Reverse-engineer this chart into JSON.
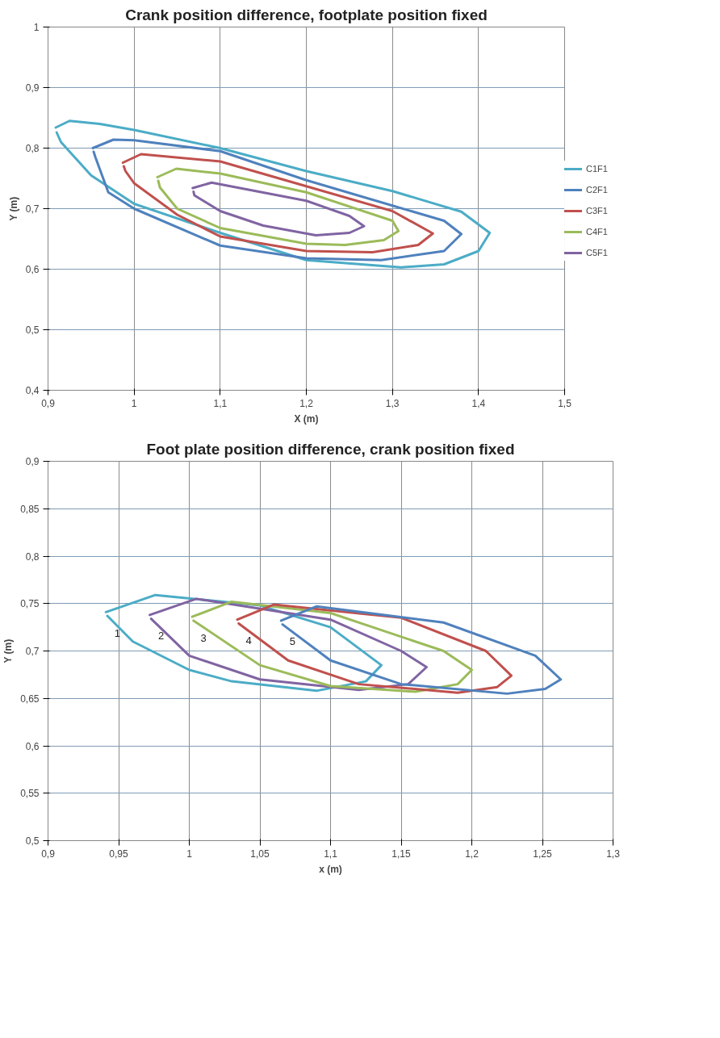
{
  "chart_data": [
    {
      "type": "line",
      "title": "Crank position difference, footplate position fixed",
      "xlabel": "X (m)",
      "ylabel": "Y (m)",
      "xlim": [
        0.9,
        1.5
      ],
      "ylim": [
        0.4,
        1.0
      ],
      "xticks": [
        {
          "value": 0.9,
          "label": "0,9"
        },
        {
          "value": 1.0,
          "label": "1"
        },
        {
          "value": 1.1,
          "label": "1,1"
        },
        {
          "value": 1.2,
          "label": "1,2"
        },
        {
          "value": 1.3,
          "label": "1,3"
        },
        {
          "value": 1.4,
          "label": "1,4"
        },
        {
          "value": 1.5,
          "label": "1,5"
        }
      ],
      "yticks": [
        {
          "value": 0.4,
          "label": "0,4"
        },
        {
          "value": 0.5,
          "label": "0,5"
        },
        {
          "value": 0.6,
          "label": "0,6"
        },
        {
          "value": 0.7,
          "label": "0,7"
        },
        {
          "value": 0.8,
          "label": "0,8"
        },
        {
          "value": 0.9,
          "label": "0,9"
        },
        {
          "value": 1.0,
          "label": "1"
        }
      ],
      "grid": true,
      "legend": "right",
      "marker": "none",
      "line_style": "solid",
      "series": [
        {
          "name": "C1F1",
          "color": "#4bacc6",
          "x": [
            0.909,
            0.925,
            0.96,
            1.0,
            1.1,
            1.2,
            1.3,
            1.38,
            1.413,
            1.4,
            1.36,
            1.31,
            1.2,
            1.1,
            1.0,
            0.95,
            0.915,
            0.91
          ],
          "values": [
            0.834,
            0.845,
            0.84,
            0.83,
            0.8,
            0.762,
            0.729,
            0.695,
            0.66,
            0.63,
            0.608,
            0.603,
            0.615,
            0.66,
            0.708,
            0.755,
            0.81,
            0.826
          ]
        },
        {
          "name": "C2F1",
          "color": "#4f81bd",
          "x": [
            0.952,
            0.976,
            1.0,
            1.1,
            1.2,
            1.3,
            1.36,
            1.38,
            1.36,
            1.287,
            1.2,
            1.1,
            1.0,
            0.97,
            0.955,
            0.953
          ],
          "values": [
            0.8,
            0.814,
            0.813,
            0.795,
            0.747,
            0.705,
            0.68,
            0.658,
            0.63,
            0.615,
            0.618,
            0.639,
            0.7,
            0.727,
            0.785,
            0.794
          ]
        },
        {
          "name": "C3F1",
          "color": "#c0504d",
          "x": [
            0.987,
            1.008,
            1.1,
            1.2,
            1.3,
            1.347,
            1.33,
            1.277,
            1.2,
            1.1,
            1.05,
            1.0,
            0.99,
            0.988
          ],
          "values": [
            0.776,
            0.79,
            0.778,
            0.737,
            0.696,
            0.659,
            0.64,
            0.628,
            0.63,
            0.654,
            0.69,
            0.742,
            0.762,
            0.77
          ]
        },
        {
          "name": "C4F1",
          "color": "#9bbb59",
          "x": [
            1.027,
            1.049,
            1.1,
            1.2,
            1.3,
            1.307,
            1.29,
            1.245,
            1.2,
            1.1,
            1.05,
            1.03,
            1.028
          ],
          "values": [
            0.752,
            0.766,
            0.758,
            0.727,
            0.68,
            0.663,
            0.648,
            0.64,
            0.642,
            0.668,
            0.7,
            0.735,
            0.746
          ]
        },
        {
          "name": "C5F1",
          "color": "#8064a2",
          "x": [
            1.068,
            1.09,
            1.2,
            1.25,
            1.267,
            1.25,
            1.211,
            1.15,
            1.1,
            1.07,
            1.069
          ],
          "values": [
            0.734,
            0.743,
            0.713,
            0.688,
            0.671,
            0.66,
            0.656,
            0.672,
            0.696,
            0.722,
            0.728
          ]
        }
      ]
    },
    {
      "type": "line",
      "title": "Foot plate position difference, crank position fixed",
      "xlabel": "x (m)",
      "ylabel": "Y (m)",
      "xlim": [
        0.9,
        1.3
      ],
      "ylim": [
        0.5,
        0.9
      ],
      "xticks": [
        {
          "value": 0.9,
          "label": "0,9"
        },
        {
          "value": 0.95,
          "label": "0,95"
        },
        {
          "value": 1.0,
          "label": "1"
        },
        {
          "value": 1.05,
          "label": "1,05"
        },
        {
          "value": 1.1,
          "label": "1,1"
        },
        {
          "value": 1.15,
          "label": "1,15"
        },
        {
          "value": 1.2,
          "label": "1,2"
        },
        {
          "value": 1.25,
          "label": "1,25"
        },
        {
          "value": 1.3,
          "label": "1,3"
        }
      ],
      "yticks": [
        {
          "value": 0.5,
          "label": "0,5"
        },
        {
          "value": 0.55,
          "label": "0,55"
        },
        {
          "value": 0.6,
          "label": "0,6"
        },
        {
          "value": 0.65,
          "label": "0,65"
        },
        {
          "value": 0.7,
          "label": "0,7"
        },
        {
          "value": 0.75,
          "label": "0,75"
        },
        {
          "value": 0.8,
          "label": "0,8"
        },
        {
          "value": 0.85,
          "label": "0,85"
        },
        {
          "value": 0.9,
          "label": "0,9"
        }
      ],
      "grid": true,
      "marker": "none",
      "line_style": "solid",
      "annotations": [
        {
          "text": "1",
          "x": 0.941,
          "y": 0.741
        },
        {
          "text": "2",
          "x": 0.972,
          "y": 0.738
        },
        {
          "text": "3",
          "x": 1.002,
          "y": 0.736
        },
        {
          "text": "4",
          "x": 1.034,
          "y": 0.733
        },
        {
          "text": "5",
          "x": 1.065,
          "y": 0.732
        }
      ],
      "series": [
        {
          "color": "#4bacc6",
          "x": [
            0.941,
            0.976,
            1.05,
            1.1,
            1.136,
            1.125,
            1.09,
            1.03,
            1.0,
            0.96,
            0.942
          ],
          "values": [
            0.741,
            0.759,
            0.748,
            0.725,
            0.685,
            0.668,
            0.658,
            0.668,
            0.68,
            0.71,
            0.737
          ]
        },
        {
          "color": "#8064a2",
          "x": [
            0.972,
            1.005,
            1.1,
            1.15,
            1.168,
            1.155,
            1.12,
            1.05,
            1.0,
            0.973
          ],
          "values": [
            0.738,
            0.755,
            0.733,
            0.7,
            0.683,
            0.665,
            0.659,
            0.67,
            0.695,
            0.734
          ]
        },
        {
          "color": "#9bbb59",
          "x": [
            1.002,
            1.03,
            1.1,
            1.18,
            1.2,
            1.19,
            1.16,
            1.1,
            1.05,
            1.003
          ],
          "values": [
            0.736,
            0.752,
            0.74,
            0.7,
            0.68,
            0.665,
            0.657,
            0.663,
            0.685,
            0.732
          ]
        },
        {
          "color": "#c0504d",
          "x": [
            1.034,
            1.06,
            1.15,
            1.21,
            1.228,
            1.218,
            1.19,
            1.12,
            1.07,
            1.035
          ],
          "values": [
            0.733,
            0.749,
            0.735,
            0.7,
            0.674,
            0.662,
            0.656,
            0.665,
            0.69,
            0.729
          ]
        },
        {
          "color": "#4f81bd",
          "x": [
            1.065,
            1.09,
            1.18,
            1.245,
            1.263,
            1.252,
            1.225,
            1.15,
            1.1,
            1.066
          ],
          "values": [
            0.732,
            0.747,
            0.73,
            0.695,
            0.67,
            0.66,
            0.655,
            0.665,
            0.69,
            0.728
          ]
        }
      ]
    }
  ]
}
